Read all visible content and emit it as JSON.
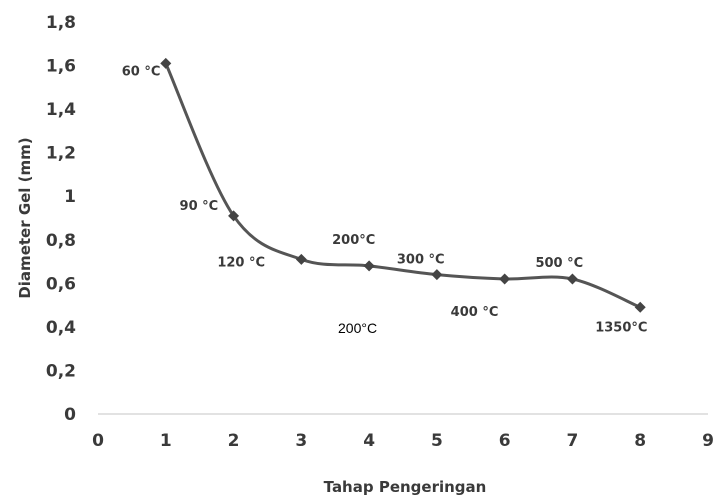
{
  "chart_data": {
    "type": "line",
    "title": "",
    "xlabel": "Tahap Pengeringan",
    "ylabel": "Diameter Gel (mm)",
    "xlim": [
      0,
      9
    ],
    "ylim": [
      0,
      1.8
    ],
    "x_ticks": [
      "0",
      "1",
      "2",
      "3",
      "4",
      "5",
      "6",
      "7",
      "8",
      "9"
    ],
    "y_ticks": [
      "0",
      "0,2",
      "0,4",
      "0,6",
      "0,8",
      "1",
      "1,2",
      "1,4",
      "1,6",
      "1,8"
    ],
    "grid": false,
    "smooth": true,
    "series": [
      {
        "x": [
          1,
          2,
          3,
          4,
          5,
          6,
          7,
          8
        ],
        "y": [
          1.61,
          0.91,
          0.71,
          0.68,
          0.64,
          0.62,
          0.62,
          0.49
        ],
        "labels": [
          "60 °C",
          "90 °C",
          "120 °C",
          "200°C",
          "300 °C",
          "400 °C",
          "500 °C",
          "1350°C"
        ],
        "color": "#555555"
      }
    ],
    "annotation": "200°C"
  }
}
